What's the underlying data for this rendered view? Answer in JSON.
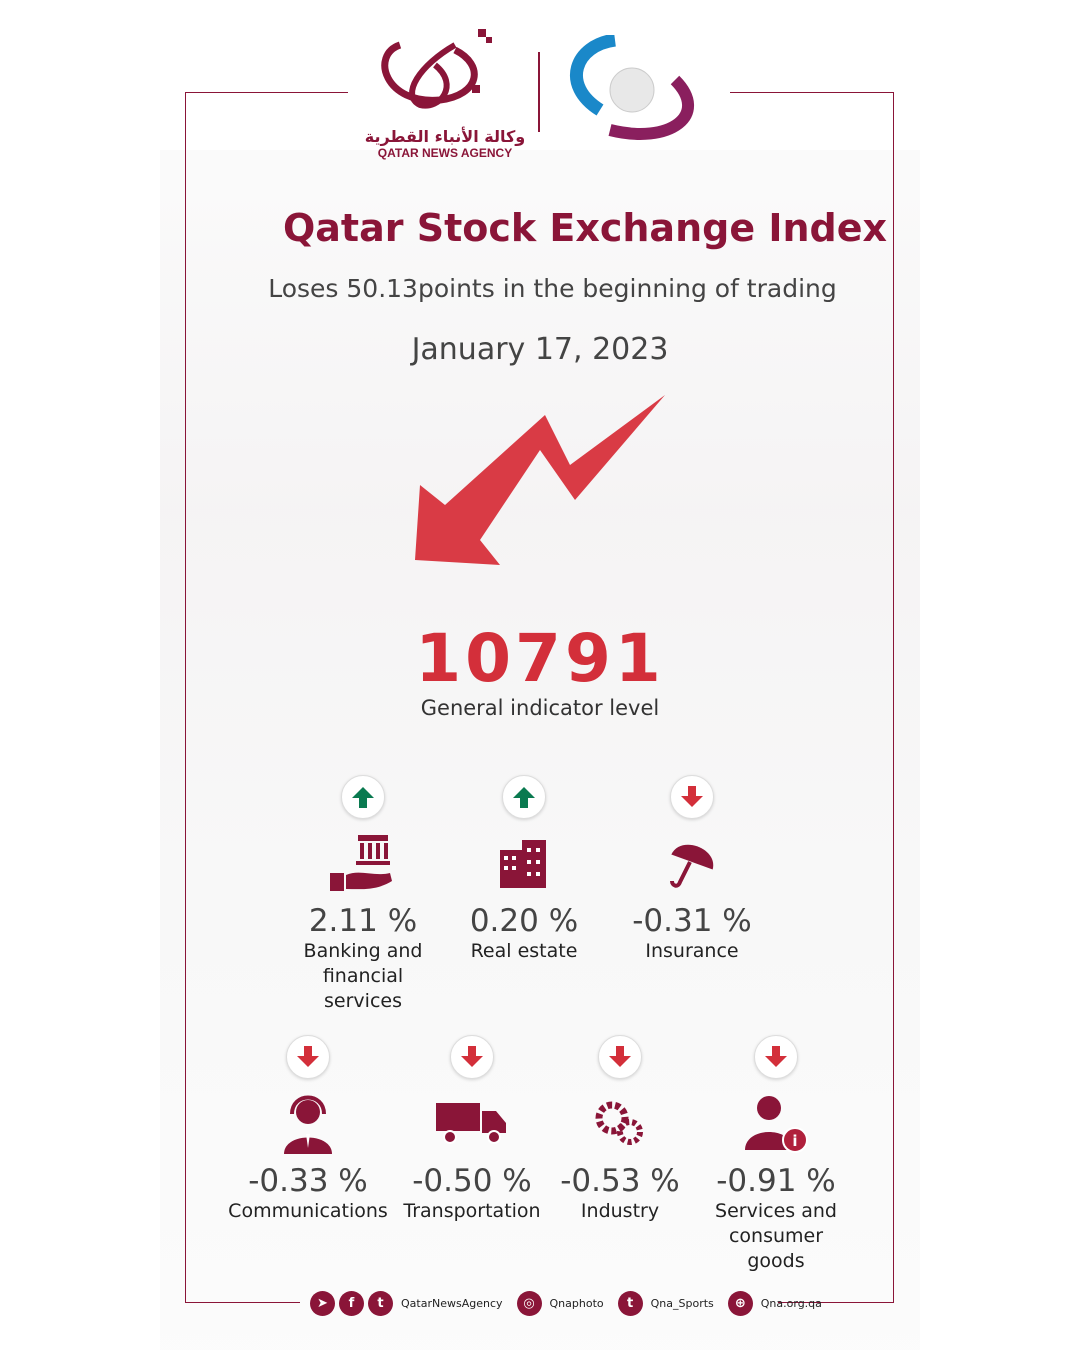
{
  "colors": {
    "brand": "#8a1538",
    "down": "#d32f3a",
    "up": "#0a7a50"
  },
  "logo": {
    "arabic": "وكالة الأنباء القطرية",
    "english": "QATAR NEWS AGENCY"
  },
  "header": {
    "title": "Qatar Stock Exchange Index",
    "subtitle": "Loses 50.13points in the beginning of trading",
    "date": "January 17, 2023"
  },
  "index": {
    "value": "10791",
    "label": "General indicator level",
    "trend": "down"
  },
  "sectors": [
    {
      "icon": "bank-hand-icon",
      "change": "2.11 %",
      "name": "Banking and financial services",
      "trend": "up"
    },
    {
      "icon": "building-icon",
      "change": "0.20 %",
      "name": "Real estate",
      "trend": "up"
    },
    {
      "icon": "umbrella-icon",
      "change": "-0.31 %",
      "name": "Insurance",
      "trend": "down"
    },
    {
      "icon": "headset-agent-icon",
      "change": "-0.33 %",
      "name": "Communications",
      "trend": "down"
    },
    {
      "icon": "truck-icon",
      "change": "-0.50 %",
      "name": "Transportation",
      "trend": "down"
    },
    {
      "icon": "gears-icon",
      "change": "-0.53 %",
      "name": "Industry",
      "trend": "down"
    },
    {
      "icon": "agent-info-icon",
      "change": "-0.91 %",
      "name": "Services and consumer goods",
      "trend": "down"
    }
  ],
  "footer": {
    "handles": [
      "QatarNewsAgency",
      "Qnaphoto",
      "Qna_Sports",
      "Qna.org.qa"
    ]
  }
}
